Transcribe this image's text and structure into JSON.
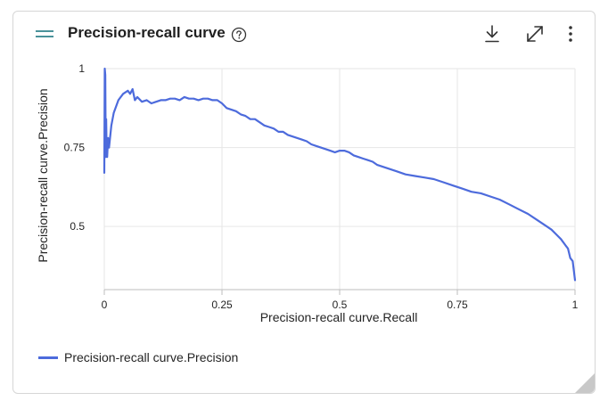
{
  "card": {
    "title": "Precision-recall curve",
    "icons": {
      "drag": "drag-handle-icon",
      "help": "help-circle-icon",
      "download": "download-icon",
      "expand": "expand-icon",
      "more": "more-vertical-icon"
    }
  },
  "chart_data": {
    "type": "line",
    "xlabel": "Precision-recall curve.Recall",
    "ylabel": "Precision-recall curve.Precision",
    "xlim": [
      0,
      1
    ],
    "ylim": [
      0.3,
      1
    ],
    "x_ticks": [
      0,
      0.25,
      0.5,
      0.75,
      1
    ],
    "x_tick_labels": [
      "0",
      "0.25",
      "0.5",
      "0.75",
      "1"
    ],
    "y_ticks": [
      0.5,
      0.75,
      1
    ],
    "y_tick_labels": [
      "0.5",
      "0.75",
      "1"
    ],
    "grid": true,
    "legend_position": "bottom-left",
    "series": [
      {
        "name": "Precision-recall curve.Precision",
        "color": "#4d6bdc",
        "x": [
          0.0,
          0.001,
          0.002,
          0.003,
          0.004,
          0.005,
          0.006,
          0.008,
          0.01,
          0.015,
          0.02,
          0.03,
          0.04,
          0.05,
          0.055,
          0.06,
          0.065,
          0.07,
          0.08,
          0.09,
          0.1,
          0.11,
          0.12,
          0.13,
          0.14,
          0.15,
          0.16,
          0.17,
          0.18,
          0.19,
          0.2,
          0.21,
          0.22,
          0.23,
          0.24,
          0.25,
          0.26,
          0.27,
          0.28,
          0.29,
          0.3,
          0.31,
          0.32,
          0.33,
          0.34,
          0.35,
          0.36,
          0.37,
          0.38,
          0.39,
          0.4,
          0.41,
          0.42,
          0.43,
          0.44,
          0.45,
          0.46,
          0.47,
          0.48,
          0.49,
          0.5,
          0.51,
          0.52,
          0.53,
          0.54,
          0.55,
          0.56,
          0.57,
          0.58,
          0.59,
          0.6,
          0.62,
          0.64,
          0.66,
          0.68,
          0.7,
          0.72,
          0.74,
          0.76,
          0.78,
          0.8,
          0.82,
          0.84,
          0.86,
          0.88,
          0.9,
          0.92,
          0.94,
          0.95,
          0.96,
          0.97,
          0.98,
          0.985,
          0.99,
          0.995,
          1.0
        ],
        "y": [
          0.67,
          1.0,
          0.98,
          0.72,
          0.84,
          0.74,
          0.72,
          0.78,
          0.75,
          0.82,
          0.86,
          0.9,
          0.92,
          0.93,
          0.92,
          0.935,
          0.9,
          0.91,
          0.895,
          0.9,
          0.89,
          0.895,
          0.9,
          0.9,
          0.905,
          0.905,
          0.9,
          0.91,
          0.905,
          0.905,
          0.9,
          0.905,
          0.905,
          0.9,
          0.9,
          0.89,
          0.875,
          0.87,
          0.865,
          0.855,
          0.85,
          0.84,
          0.84,
          0.83,
          0.82,
          0.815,
          0.81,
          0.8,
          0.8,
          0.79,
          0.785,
          0.78,
          0.775,
          0.77,
          0.76,
          0.755,
          0.75,
          0.745,
          0.74,
          0.735,
          0.74,
          0.74,
          0.735,
          0.725,
          0.72,
          0.715,
          0.71,
          0.705,
          0.695,
          0.69,
          0.685,
          0.675,
          0.665,
          0.66,
          0.655,
          0.65,
          0.64,
          0.63,
          0.62,
          0.61,
          0.605,
          0.595,
          0.585,
          0.57,
          0.555,
          0.54,
          0.52,
          0.5,
          0.49,
          0.475,
          0.46,
          0.44,
          0.43,
          0.4,
          0.39,
          0.33
        ]
      }
    ]
  }
}
